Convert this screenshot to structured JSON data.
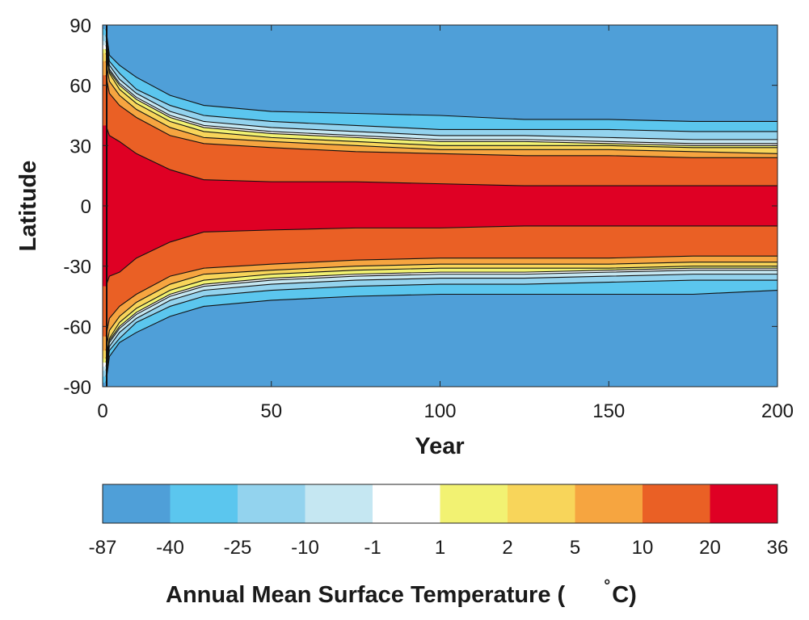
{
  "chart_data": {
    "type": "heatmap",
    "subtype": "filled-contour",
    "title": "",
    "xlabel": "Year",
    "ylabel": "Latitude",
    "xlim": [
      0,
      200
    ],
    "ylim": [
      -90,
      90
    ],
    "xticks": [
      "0",
      "50",
      "100",
      "150",
      "200"
    ],
    "yticks": [
      "90",
      "60",
      "30",
      "0",
      "-30",
      "-60",
      "-90"
    ],
    "grid": false,
    "colorbar": {
      "placement": "bottom",
      "label_main": "Annual Mean Surface Temperature (",
      "label_degree": "°",
      "label_unit": "C)",
      "levels": [
        "-87",
        "-40",
        "-25",
        "-10",
        "-1",
        "1",
        "2",
        "5",
        "10",
        "20",
        "36"
      ],
      "colors": [
        "#4f9fd8",
        "#5bc6ee",
        "#93d3ee",
        "#c5e7f2",
        "#ffffff",
        "#f2f272",
        "#f8d55a",
        "#f6a540",
        "#ea6025",
        "#df0024"
      ]
    },
    "contours": [
      {
        "level": -40,
        "north": [
          [
            1,
            88
          ],
          [
            2,
            75
          ],
          [
            5,
            70
          ],
          [
            10,
            64
          ],
          [
            20,
            55
          ],
          [
            30,
            50
          ],
          [
            50,
            47
          ],
          [
            75,
            46
          ],
          [
            100,
            45
          ],
          [
            125,
            43
          ],
          [
            150,
            43
          ],
          [
            175,
            42
          ],
          [
            200,
            42
          ]
        ],
        "south": [
          [
            1,
            -88
          ],
          [
            2,
            -75
          ],
          [
            5,
            -68
          ],
          [
            10,
            -63
          ],
          [
            20,
            -55
          ],
          [
            30,
            -50
          ],
          [
            50,
            -47
          ],
          [
            75,
            -45
          ],
          [
            100,
            -44
          ],
          [
            125,
            -44
          ],
          [
            150,
            -44
          ],
          [
            175,
            -44
          ],
          [
            200,
            -42
          ]
        ]
      },
      {
        "level": -25,
        "north": [
          [
            1,
            85
          ],
          [
            2,
            72
          ],
          [
            5,
            66
          ],
          [
            10,
            58
          ],
          [
            20,
            50
          ],
          [
            30,
            45
          ],
          [
            50,
            42
          ],
          [
            75,
            40
          ],
          [
            100,
            38
          ],
          [
            125,
            38
          ],
          [
            150,
            38
          ],
          [
            175,
            37
          ],
          [
            200,
            37
          ]
        ],
        "south": [
          [
            1,
            -85
          ],
          [
            2,
            -72
          ],
          [
            5,
            -66
          ],
          [
            10,
            -58
          ],
          [
            20,
            -50
          ],
          [
            30,
            -45
          ],
          [
            50,
            -42
          ],
          [
            75,
            -40
          ],
          [
            100,
            -39
          ],
          [
            125,
            -39
          ],
          [
            150,
            -38
          ],
          [
            175,
            -37
          ],
          [
            200,
            -37
          ]
        ]
      },
      {
        "level": -10,
        "north": [
          [
            1,
            82
          ],
          [
            2,
            70
          ],
          [
            5,
            63
          ],
          [
            10,
            56
          ],
          [
            20,
            47
          ],
          [
            30,
            42
          ],
          [
            50,
            39
          ],
          [
            75,
            37
          ],
          [
            100,
            35
          ],
          [
            125,
            35
          ],
          [
            150,
            34
          ],
          [
            175,
            33
          ],
          [
            200,
            33
          ]
        ],
        "south": [
          [
            1,
            -82
          ],
          [
            2,
            -70
          ],
          [
            5,
            -63
          ],
          [
            10,
            -56
          ],
          [
            20,
            -47
          ],
          [
            30,
            -42
          ],
          [
            50,
            -39
          ],
          [
            75,
            -37
          ],
          [
            100,
            -36
          ],
          [
            125,
            -36
          ],
          [
            150,
            -35
          ],
          [
            175,
            -34
          ],
          [
            200,
            -34
          ]
        ]
      },
      {
        "level": -1,
        "north": [
          [
            1,
            80
          ],
          [
            2,
            68
          ],
          [
            5,
            61
          ],
          [
            10,
            54
          ],
          [
            20,
            45
          ],
          [
            30,
            40
          ],
          [
            50,
            37
          ],
          [
            75,
            35
          ],
          [
            100,
            33
          ],
          [
            125,
            33
          ],
          [
            150,
            32
          ],
          [
            175,
            31
          ],
          [
            200,
            31
          ]
        ],
        "south": [
          [
            1,
            -80
          ],
          [
            2,
            -68
          ],
          [
            5,
            -61
          ],
          [
            10,
            -54
          ],
          [
            20,
            -45
          ],
          [
            30,
            -40
          ],
          [
            50,
            -37
          ],
          [
            75,
            -35
          ],
          [
            100,
            -34
          ],
          [
            125,
            -34
          ],
          [
            150,
            -33
          ],
          [
            175,
            -32
          ],
          [
            200,
            -32
          ]
        ]
      },
      {
        "level": 1,
        "north": [
          [
            1,
            78
          ],
          [
            2,
            67
          ],
          [
            5,
            60
          ],
          [
            10,
            53
          ],
          [
            20,
            44
          ],
          [
            30,
            39
          ],
          [
            50,
            36
          ],
          [
            75,
            34
          ],
          [
            100,
            32
          ],
          [
            125,
            32
          ],
          [
            150,
            31
          ],
          [
            175,
            30
          ],
          [
            200,
            30
          ]
        ],
        "south": [
          [
            1,
            -78
          ],
          [
            2,
            -67
          ],
          [
            5,
            -60
          ],
          [
            10,
            -53
          ],
          [
            20,
            -44
          ],
          [
            30,
            -39
          ],
          [
            50,
            -36
          ],
          [
            75,
            -34
          ],
          [
            100,
            -33
          ],
          [
            125,
            -33
          ],
          [
            150,
            -32
          ],
          [
            175,
            -31
          ],
          [
            200,
            -31
          ]
        ]
      },
      {
        "level": 2,
        "north": [
          [
            1,
            76
          ],
          [
            2,
            66
          ],
          [
            5,
            58
          ],
          [
            10,
            51
          ],
          [
            20,
            42
          ],
          [
            30,
            37
          ],
          [
            50,
            34
          ],
          [
            75,
            32
          ],
          [
            100,
            30
          ],
          [
            125,
            30
          ],
          [
            150,
            30
          ],
          [
            175,
            29
          ],
          [
            200,
            29
          ]
        ],
        "south": [
          [
            1,
            -76
          ],
          [
            2,
            -66
          ],
          [
            5,
            -58
          ],
          [
            10,
            -51
          ],
          [
            20,
            -42
          ],
          [
            30,
            -37
          ],
          [
            50,
            -34
          ],
          [
            75,
            -32
          ],
          [
            100,
            -31
          ],
          [
            125,
            -31
          ],
          [
            150,
            -31
          ],
          [
            175,
            -30
          ],
          [
            200,
            -30
          ]
        ]
      },
      {
        "level": 5,
        "north": [
          [
            1,
            72
          ],
          [
            2,
            62
          ],
          [
            5,
            55
          ],
          [
            10,
            48
          ],
          [
            20,
            39
          ],
          [
            30,
            34
          ],
          [
            50,
            32
          ],
          [
            75,
            30
          ],
          [
            100,
            28
          ],
          [
            125,
            28
          ],
          [
            150,
            28
          ],
          [
            175,
            27
          ],
          [
            200,
            26
          ]
        ],
        "south": [
          [
            1,
            -72
          ],
          [
            2,
            -62
          ],
          [
            5,
            -55
          ],
          [
            10,
            -48
          ],
          [
            20,
            -39
          ],
          [
            30,
            -34
          ],
          [
            50,
            -32
          ],
          [
            75,
            -30
          ],
          [
            100,
            -29
          ],
          [
            125,
            -29
          ],
          [
            150,
            -29
          ],
          [
            175,
            -28
          ],
          [
            200,
            -28
          ]
        ]
      },
      {
        "level": 10,
        "north": [
          [
            1,
            65
          ],
          [
            2,
            56
          ],
          [
            5,
            50
          ],
          [
            10,
            44
          ],
          [
            20,
            35
          ],
          [
            30,
            31
          ],
          [
            50,
            29
          ],
          [
            75,
            27
          ],
          [
            100,
            26
          ],
          [
            125,
            25
          ],
          [
            150,
            25
          ],
          [
            175,
            24
          ],
          [
            200,
            24
          ]
        ],
        "south": [
          [
            1,
            -65
          ],
          [
            2,
            -56
          ],
          [
            5,
            -50
          ],
          [
            10,
            -44
          ],
          [
            20,
            -35
          ],
          [
            30,
            -31
          ],
          [
            50,
            -29
          ],
          [
            75,
            -27
          ],
          [
            100,
            -26
          ],
          [
            125,
            -26
          ],
          [
            150,
            -26
          ],
          [
            175,
            -25
          ],
          [
            200,
            -25
          ]
        ]
      },
      {
        "level": 20,
        "north": [
          [
            1,
            40
          ],
          [
            2,
            35
          ],
          [
            5,
            32
          ],
          [
            10,
            26
          ],
          [
            20,
            18
          ],
          [
            30,
            13
          ],
          [
            50,
            12
          ],
          [
            75,
            12
          ],
          [
            100,
            11
          ],
          [
            125,
            10
          ],
          [
            150,
            10
          ],
          [
            175,
            10
          ],
          [
            200,
            10
          ]
        ],
        "south": [
          [
            1,
            -40
          ],
          [
            2,
            -35
          ],
          [
            5,
            -33
          ],
          [
            10,
            -26
          ],
          [
            20,
            -18
          ],
          [
            30,
            -13
          ],
          [
            50,
            -12
          ],
          [
            75,
            -11
          ],
          [
            100,
            -11
          ],
          [
            125,
            -10
          ],
          [
            150,
            -10
          ],
          [
            175,
            -10
          ],
          [
            200,
            -10
          ]
        ]
      }
    ]
  }
}
